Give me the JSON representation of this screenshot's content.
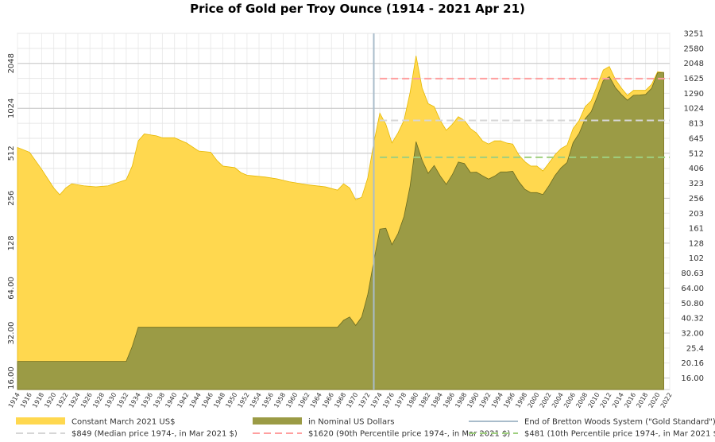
{
  "chart_data": {
    "type": "area",
    "title": "Price of Gold per Troy Ounce (1914 - 2021 Apr 21)",
    "log_scale": true,
    "grid": true,
    "x": [
      1914,
      1916,
      1918,
      1920,
      1921,
      1922,
      1923,
      1925,
      1927,
      1929,
      1931,
      1932,
      1933,
      1934,
      1935,
      1937,
      1938,
      1940,
      1942,
      1944,
      1946,
      1947,
      1948,
      1950,
      1951,
      1952,
      1955,
      1957,
      1959,
      1962,
      1965,
      1967,
      1968,
      1969,
      1970,
      1971,
      1972,
      1973,
      1974,
      1975,
      1976,
      1977,
      1978,
      1979,
      1980,
      1981,
      1982,
      1983,
      1984,
      1985,
      1986,
      1987,
      1988,
      1989,
      1990,
      1991,
      1992,
      1993,
      1994,
      1995,
      1996,
      1997,
      1998,
      1999,
      2000,
      2001,
      2002,
      2003,
      2004,
      2005,
      2006,
      2007,
      2008,
      2009,
      2010,
      2011,
      2012,
      2013,
      2014,
      2015,
      2016,
      2017,
      2018,
      2019,
      2020,
      2021
    ],
    "series": [
      {
        "name": "Constant March 2021 US$",
        "color": "#ffd84f",
        "stroke": "#e6b800",
        "values": [
          560,
          520,
          400,
          300,
          270,
          300,
          320,
          310,
          305,
          310,
          330,
          340,
          420,
          620,
          690,
          670,
          650,
          650,
          600,
          530,
          520,
          460,
          420,
          410,
          380,
          365,
          355,
          345,
          330,
          315,
          305,
          290,
          320,
          300,
          250,
          260,
          350,
          600,
          950,
          800,
          600,
          700,
          850,
          1300,
          2300,
          1400,
          1100,
          1050,
          850,
          730,
          800,
          900,
          850,
          750,
          700,
          620,
          590,
          620,
          620,
          600,
          590,
          500,
          450,
          420,
          420,
          390,
          440,
          500,
          550,
          580,
          750,
          850,
          1050,
          1150,
          1450,
          1850,
          1950,
          1600,
          1400,
          1250,
          1350,
          1350,
          1350,
          1480,
          1800,
          1780
        ]
      },
      {
        "name": "in Nominal US Dollars",
        "color": "#9b9b45",
        "stroke": "#6b6b1e",
        "values": [
          20.67,
          20.67,
          20.67,
          20.67,
          20.67,
          20.67,
          20.67,
          20.67,
          20.67,
          20.67,
          20.67,
          20.67,
          26,
          35,
          35,
          35,
          35,
          35,
          35,
          35,
          35,
          35,
          35,
          35,
          35,
          35,
          35,
          35,
          35,
          35,
          35,
          35,
          39,
          41,
          36,
          41,
          58,
          97,
          159,
          161,
          125,
          148,
          193,
          307,
          612,
          460,
          376,
          424,
          361,
          317,
          368,
          447,
          437,
          381,
          383,
          362,
          344,
          360,
          384,
          384,
          388,
          331,
          294,
          279,
          279,
          271,
          310,
          363,
          409,
          444,
          603,
          695,
          872,
          972,
          1225,
          1572,
          1669,
          1411,
          1266,
          1160,
          1251,
          1257,
          1268,
          1393,
          1770,
          1780
        ]
      }
    ],
    "vertical_line": {
      "name": "End of Bretton Woods System (\"Gold Standard\")",
      "x": 1973,
      "color": "#a9bccb"
    },
    "reference_lines": [
      {
        "name": "$849 (Median price 1974-, in Mar 2021 $)",
        "value": 849,
        "x_start": 1974,
        "color": "#d6d6d6"
      },
      {
        "name": "$1620 (90th Percentile price 1974-, in Mar 2021 $)",
        "value": 1620,
        "x_start": 1974,
        "color": "#ff9f9f"
      },
      {
        "name": "$481 (10th Percentile price 1974-, in Mar 2021 $)",
        "value": 481,
        "x_start": 1974,
        "color": "#9fcf7f"
      }
    ],
    "xlim": [
      1914,
      2022
    ],
    "xticks": [
      1914,
      1916,
      1918,
      1920,
      1922,
      1924,
      1926,
      1928,
      1930,
      1932,
      1934,
      1936,
      1938,
      1940,
      1942,
      1944,
      1946,
      1948,
      1950,
      1952,
      1954,
      1956,
      1958,
      1960,
      1962,
      1964,
      1966,
      1968,
      1970,
      1972,
      1974,
      1976,
      1978,
      1980,
      1982,
      1984,
      1986,
      1988,
      1990,
      1992,
      1994,
      1996,
      1998,
      2000,
      2002,
      2004,
      2006,
      2008,
      2010,
      2012,
      2014,
      2016,
      2018,
      2020,
      2022
    ],
    "ylim": [
      13.4,
      3251
    ],
    "yticks": [
      {
        "value": 16,
        "label": "16.00"
      },
      {
        "value": 32,
        "label": "32.00"
      },
      {
        "value": 64,
        "label": "64.00"
      },
      128,
      256,
      512,
      1024,
      2048
    ],
    "y2lim": [
      13.4,
      3251
    ],
    "y2ticks": [
      {
        "value": 16,
        "label": "16.00"
      },
      20.16,
      25.4,
      {
        "value": 32,
        "label": "32.00"
      },
      40.32,
      {
        "value": 50.8,
        "label": "50.80"
      },
      {
        "value": 64,
        "label": "64.00"
      },
      80.63,
      102,
      128,
      161,
      203,
      256,
      323,
      406,
      512,
      645,
      813,
      1024,
      1290,
      1625,
      2048,
      2580,
      3251
    ]
  }
}
